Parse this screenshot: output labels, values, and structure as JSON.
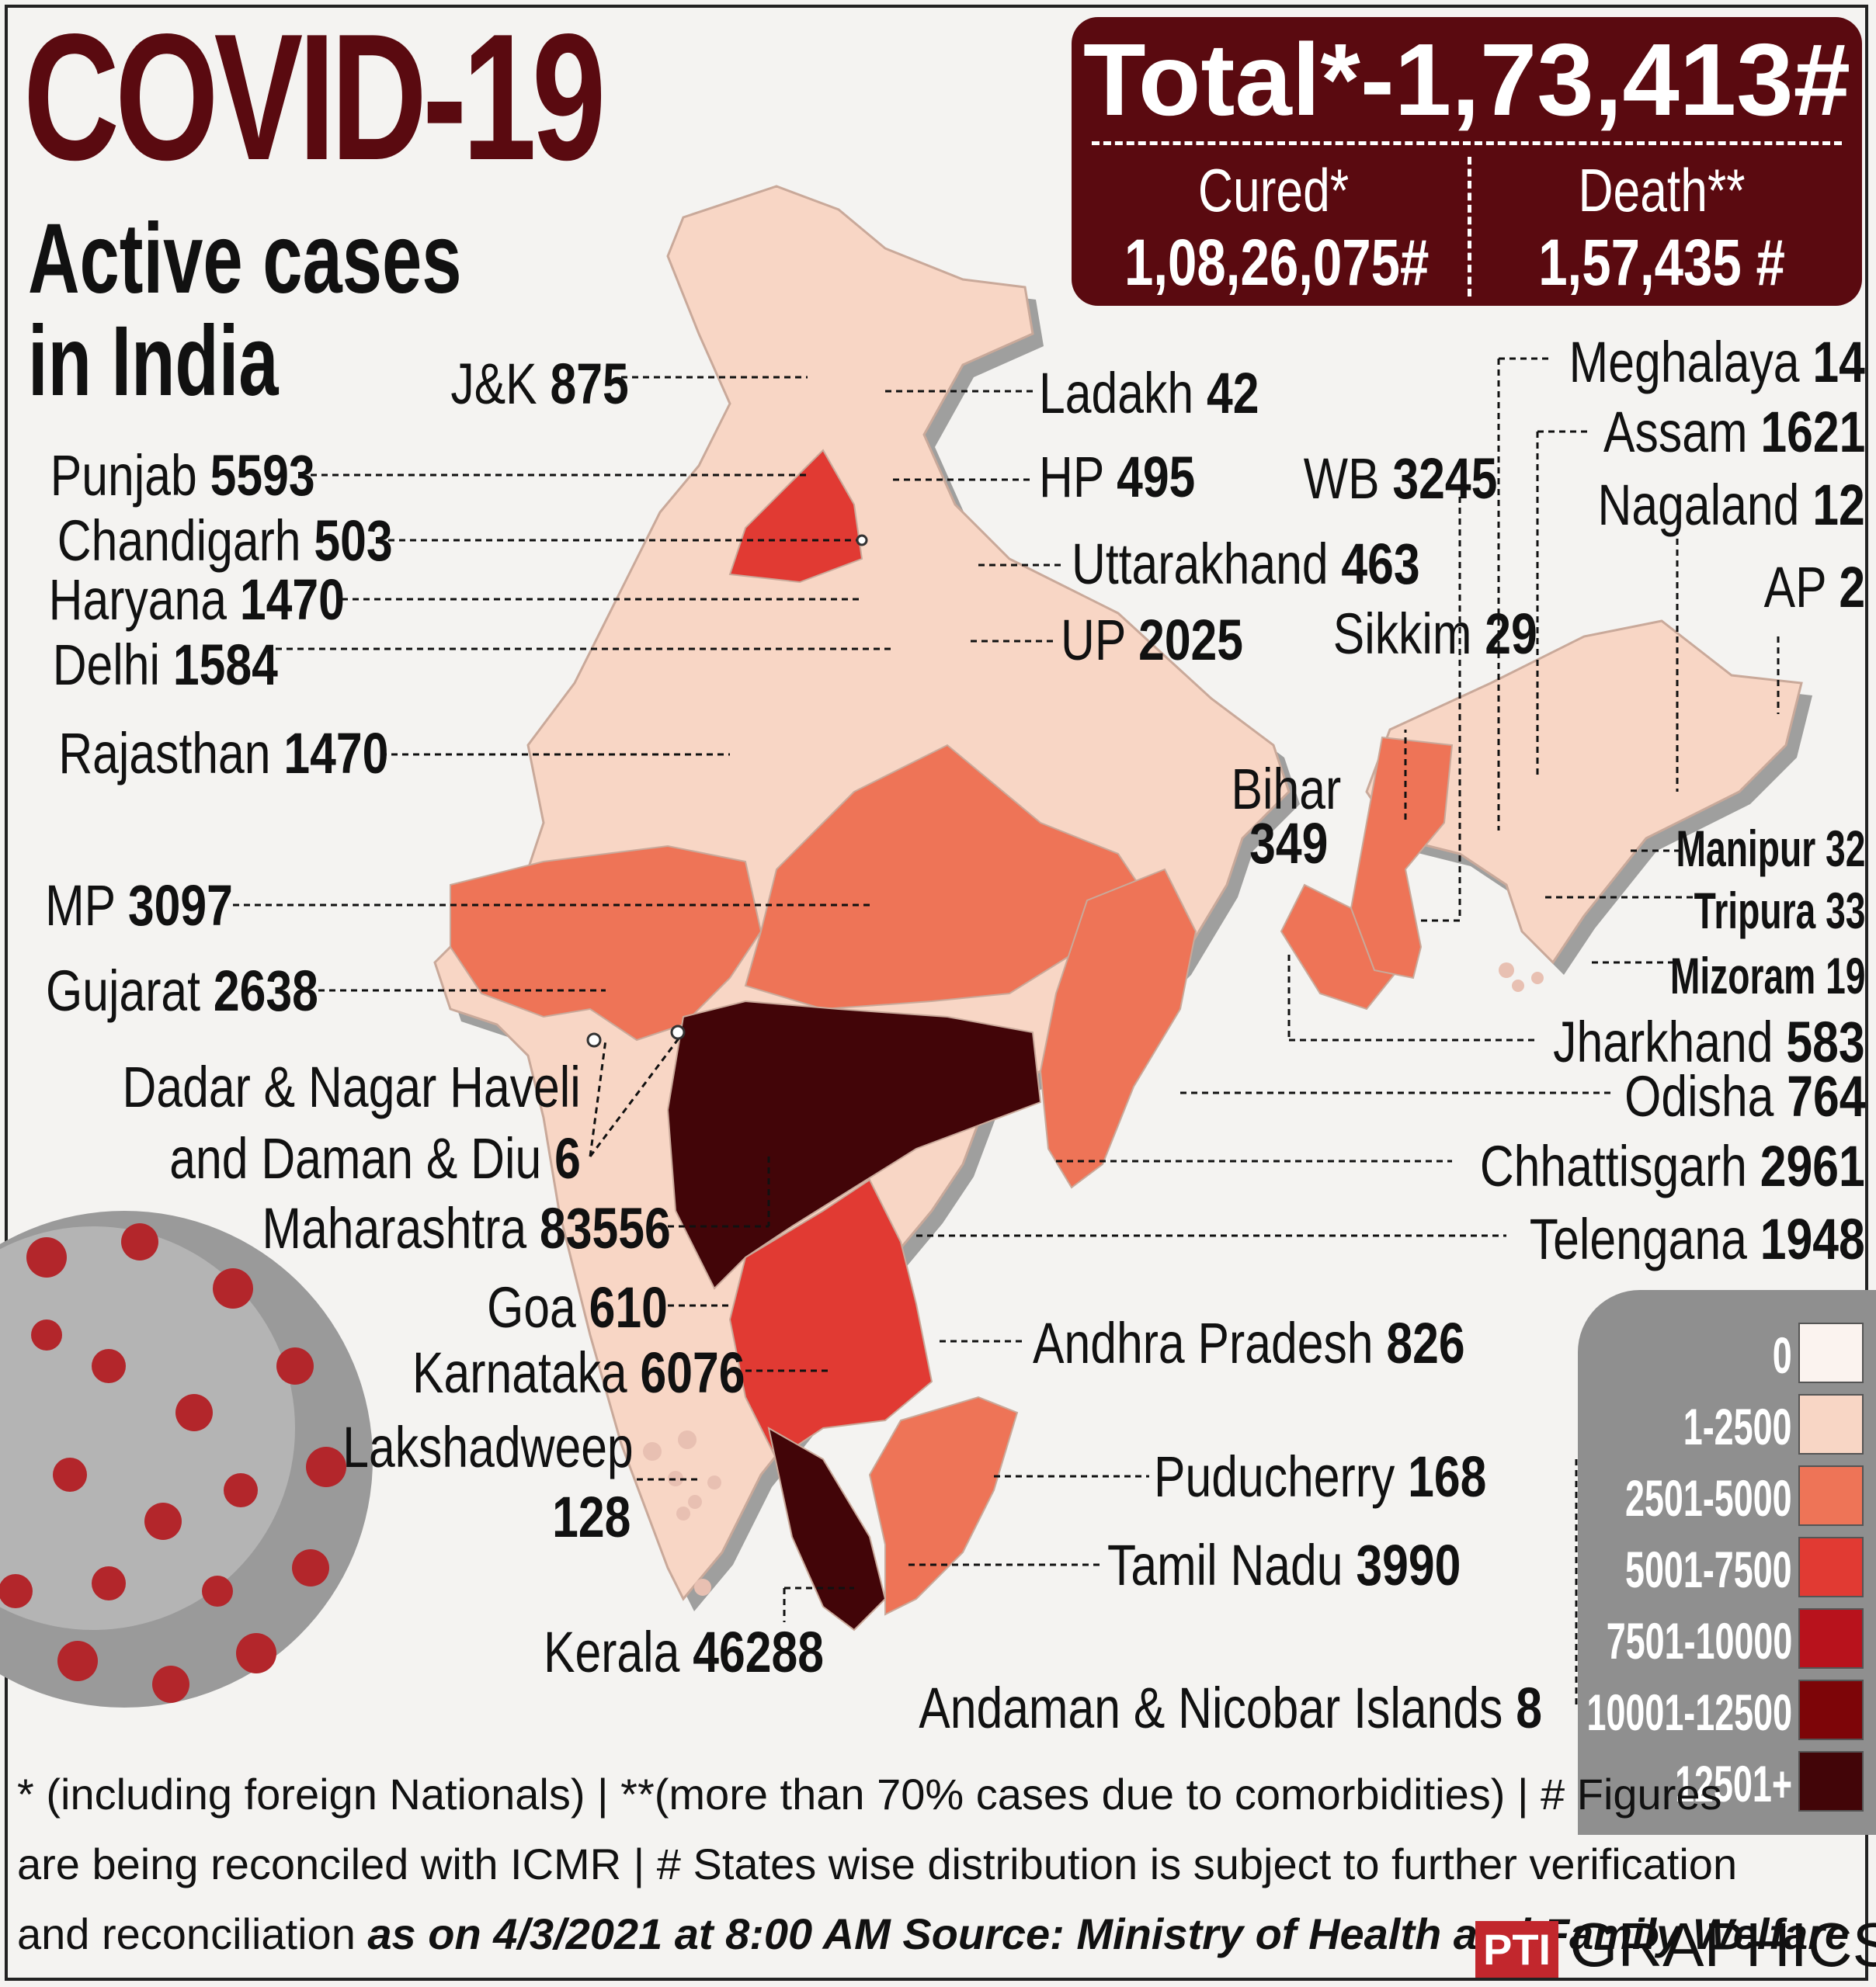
{
  "header": {
    "title": "COVID-19",
    "subtitle_line1": "Active cases",
    "subtitle_line2": "in India"
  },
  "totals": {
    "total": "Total*-1,73,413#",
    "cured_label": "Cured*",
    "cured_value": "1,08,26,075#",
    "death_label": "Death**",
    "death_value": "1,57,435 #"
  },
  "states": {
    "jk": {
      "name": "J&K",
      "value": "875"
    },
    "ladakh": {
      "name": "Ladakh",
      "value": "42"
    },
    "punjab": {
      "name": "Punjab",
      "value": "5593"
    },
    "hp": {
      "name": "HP",
      "value": "495"
    },
    "chandigarh": {
      "name": "Chandigarh",
      "value": "503"
    },
    "uttarakhand": {
      "name": "Uttarakhand",
      "value": "463"
    },
    "haryana": {
      "name": "Haryana",
      "value": "1470"
    },
    "delhi": {
      "name": "Delhi",
      "value": "1584"
    },
    "up": {
      "name": "UP",
      "value": "2025"
    },
    "rajasthan": {
      "name": "Rajasthan",
      "value": "1470"
    },
    "wb": {
      "name": "WB",
      "value": "3245"
    },
    "sikkim": {
      "name": "Sikkim",
      "value": "29"
    },
    "bihar": {
      "name": "Bihar",
      "value": "349"
    },
    "mp": {
      "name": "MP",
      "value": "3097"
    },
    "gujarat": {
      "name": "Gujarat",
      "value": "2638"
    },
    "dnh_line1": "Dadar & Nagar Haveli",
    "dnh": {
      "name": "and Daman & Diu",
      "value": "6"
    },
    "maharashtra": {
      "name": "Maharashtra",
      "value": "83556"
    },
    "goa": {
      "name": "Goa",
      "value": "610"
    },
    "karnataka": {
      "name": "Karnataka",
      "value": "6076"
    },
    "lakshadweep": {
      "name": "Lakshadweep",
      "value": "128"
    },
    "kerala": {
      "name": "Kerala",
      "value": "46288"
    },
    "meghalaya": {
      "name": "Meghalaya",
      "value": "14"
    },
    "assam": {
      "name": "Assam",
      "value": "1621"
    },
    "nagaland": {
      "name": "Nagaland",
      "value": "12"
    },
    "ap_ne": {
      "name": "AP",
      "value": "2"
    },
    "manipur": {
      "name": "Manipur",
      "value": "32"
    },
    "tripura": {
      "name": "Tripura",
      "value": "33"
    },
    "mizoram": {
      "name": "Mizoram",
      "value": "19"
    },
    "jharkhand": {
      "name": "Jharkhand",
      "value": "583"
    },
    "odisha": {
      "name": "Odisha",
      "value": "764"
    },
    "chhattisgarh": {
      "name": "Chhattisgarh",
      "value": "2961"
    },
    "telangana": {
      "name": "Telengana",
      "value": "1948"
    },
    "andhra": {
      "name": "Andhra Pradesh",
      "value": "826"
    },
    "puducherry": {
      "name": "Puducherry",
      "value": "168"
    },
    "tamilnadu": {
      "name": "Tamil Nadu",
      "value": "3990"
    },
    "andaman": {
      "name": "Andaman & Nicobar Islands",
      "value": "8"
    }
  },
  "legend": [
    {
      "label": "0",
      "color": "#fbf3ef"
    },
    {
      "label": "1-2500",
      "color": "#f8d6c5"
    },
    {
      "label": "2501-5000",
      "color": "#ee7457"
    },
    {
      "label": "5001-7500",
      "color": "#e13a33"
    },
    {
      "label": "7501-10000",
      "color": "#b8121c"
    },
    {
      "label": "10001-12500",
      "color": "#7d0508"
    },
    {
      "label": "12501+",
      "color": "#420508"
    }
  ],
  "footer": {
    "line1": "* (including foreign Nationals) | **(more than 70% cases due to comorbidities) | # Figures",
    "line2": "are being reconciled with ICMR  | # States wise distribution is subject to further verification",
    "line3_plain": "and reconciliation",
    "line3_italic": "as on 4/3/2021 at 8:00 AM  Source: Ministry of Health and Family Welfare",
    "logo": "PTI",
    "brand": "GRAPHICS"
  }
}
